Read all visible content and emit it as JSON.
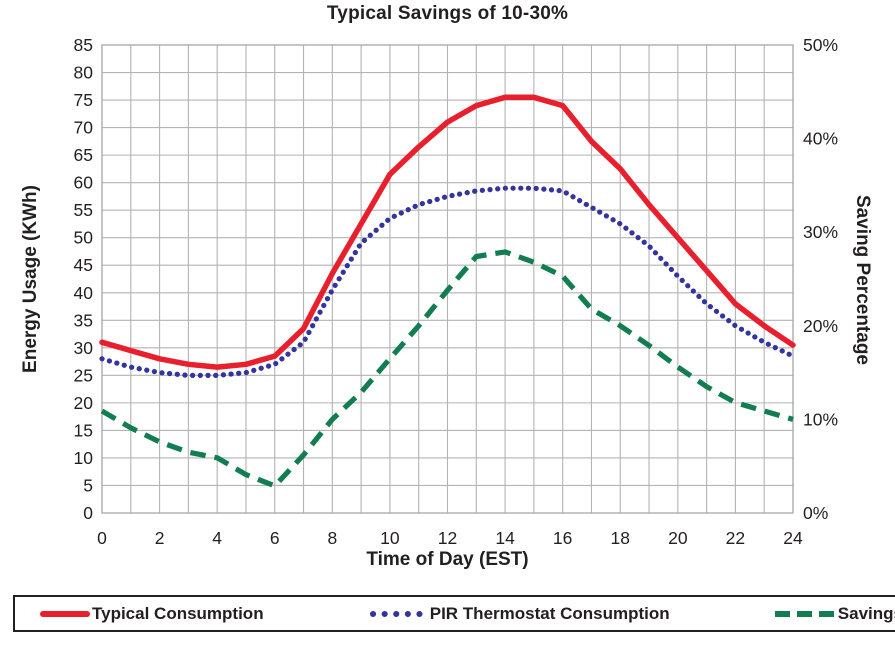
{
  "chart": {
    "title": "Typical Savings of 10-30%",
    "x_axis": {
      "title": "Time of Day (EST)",
      "min": 0,
      "max": 24,
      "grid_interval": 1,
      "tick_labels": [
        "0",
        "2",
        "4",
        "6",
        "8",
        "10",
        "12",
        "14",
        "16",
        "18",
        "20",
        "22",
        "24"
      ]
    },
    "y_axis_left": {
      "title": "Energy Usage (KWh)",
      "min": 0,
      "max": 85,
      "grid_interval": 5,
      "tick_labels": [
        "85",
        "80",
        "75",
        "70",
        "65",
        "60",
        "55",
        "50",
        "45",
        "40",
        "35",
        "30",
        "25",
        "20",
        "15",
        "10",
        "5",
        "0"
      ]
    },
    "y_axis_right": {
      "title": "Saving Percentage",
      "min": 0,
      "max": 50,
      "tick_labels": [
        "50%",
        "40%",
        "30%",
        "20%",
        "10%",
        "0%"
      ]
    },
    "colors": {
      "grid": "#b3b3b3",
      "plot_border": "#a8a8a8",
      "text": "#231f20",
      "typical_consumption": "#e8202d",
      "pir_thermostat": "#33349c",
      "savings": "#137d52"
    }
  },
  "chart_data": {
    "type": "line",
    "title": "Typical Savings of 10-30%",
    "xlabel": "Time of Day (EST)",
    "ylabel_left": "Energy Usage (KWh)",
    "ylabel_right": "Saving Percentage",
    "xlim": [
      0,
      24
    ],
    "ylim_left": [
      0,
      85
    ],
    "ylim_right_percent": [
      0,
      50
    ],
    "grid": true,
    "legend_position": "bottom",
    "x": [
      0,
      1,
      2,
      3,
      4,
      5,
      6,
      7,
      8,
      9,
      10,
      11,
      12,
      13,
      14,
      15,
      16,
      17,
      18,
      19,
      20,
      21,
      22,
      23,
      24
    ],
    "series": [
      {
        "name": "Typical Consumption",
        "axis": "left",
        "unit": "KWh",
        "style": "solid",
        "color": "#e8202d",
        "values": [
          31,
          29.5,
          28,
          27,
          26.5,
          27,
          28.5,
          33.5,
          43.5,
          52.5,
          61.5,
          66.5,
          71,
          74,
          75.5,
          75.5,
          74,
          67.5,
          62.5,
          56,
          50,
          44,
          38,
          34,
          30.5
        ]
      },
      {
        "name": "PIR Thermostat Consumption",
        "axis": "left",
        "unit": "KWh",
        "style": "dotted",
        "color": "#33349c",
        "values": [
          28,
          26.5,
          25.5,
          25,
          25,
          25.5,
          27,
          31,
          40.5,
          49,
          53.5,
          56,
          57.5,
          58.5,
          59,
          59,
          58.5,
          55.5,
          52.5,
          48.5,
          43,
          38,
          34,
          31,
          28.5
        ]
      },
      {
        "name": "Savings",
        "axis": "right",
        "unit": "%",
        "style": "dashed",
        "color": "#137d52",
        "values": [
          10.9,
          9.1,
          7.6,
          6.5,
          5.9,
          4.1,
          2.9,
          6.2,
          10,
          12.9,
          16.5,
          20,
          23.8,
          27.4,
          27.9,
          26.8,
          25.3,
          21.8,
          20,
          17.9,
          15.6,
          13.5,
          11.8,
          10.9,
          10
        ]
      }
    ]
  }
}
